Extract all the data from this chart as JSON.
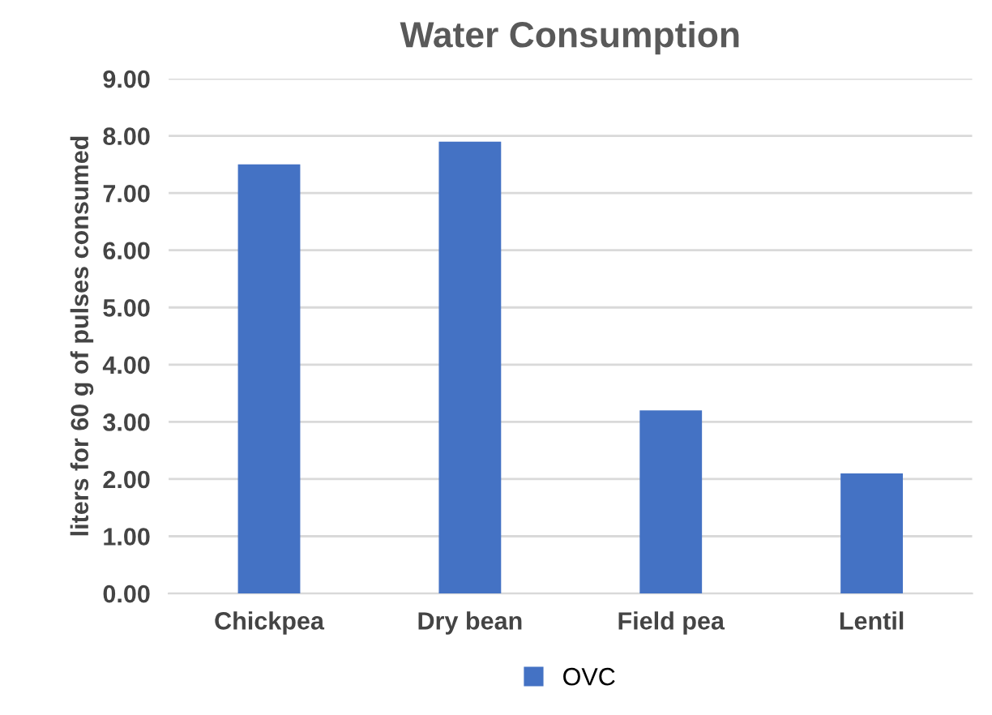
{
  "chart_data": {
    "type": "bar",
    "title": "Water Consumption",
    "ylabel": "liters for 60 g of pulses consumed",
    "categories": [
      "Chickpea",
      "Dry bean",
      "Field pea",
      "Lentil"
    ],
    "series": [
      {
        "name": "OVC",
        "color": "#4472c4",
        "values": [
          7.5,
          7.9,
          3.2,
          2.1
        ]
      }
    ],
    "ylim": [
      0,
      9
    ],
    "yticks": [
      {
        "value": 0,
        "label": "0.00"
      },
      {
        "value": 1,
        "label": "1.00"
      },
      {
        "value": 2,
        "label": "2.00"
      },
      {
        "value": 3,
        "label": "3.00"
      },
      {
        "value": 4,
        "label": "4.00"
      },
      {
        "value": 5,
        "label": "5.00"
      },
      {
        "value": 6,
        "label": "6.00"
      },
      {
        "value": 7,
        "label": "7.00"
      },
      {
        "value": 8,
        "label": "8.00"
      },
      {
        "value": 9,
        "label": "9.00"
      }
    ],
    "grid": "y",
    "legend": "bottom"
  }
}
